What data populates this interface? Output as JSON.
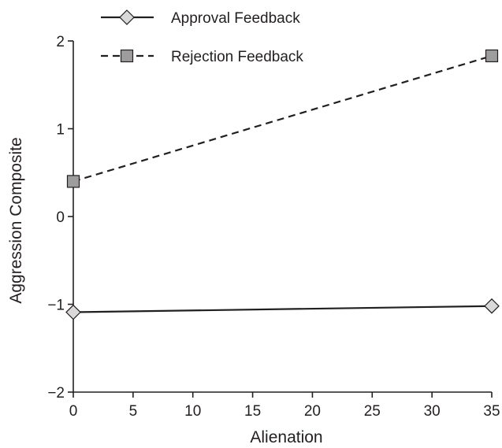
{
  "chart_data": {
    "type": "line",
    "title": "",
    "xlabel": "Alienation",
    "ylabel": "Aggression Composite",
    "x_ticks": [
      "0",
      "5",
      "10",
      "15",
      "20",
      "25",
      "30",
      "35"
    ],
    "y_ticks": [
      "2",
      "1",
      "0",
      "−1",
      "−2"
    ],
    "xlim": [
      0,
      35
    ],
    "ylim": [
      -2,
      2
    ],
    "grid": false,
    "legend_position": "top-left",
    "series": [
      {
        "name": "Approval Feedback",
        "marker": "diamond",
        "line_style": "solid",
        "marker_fill": "#d9d9d9",
        "x": [
          0,
          35
        ],
        "y": [
          -1.09,
          -1.02
        ]
      },
      {
        "name": "Rejection Feedback",
        "marker": "square",
        "line_style": "dashed",
        "marker_fill": "#9d9d9d",
        "x": [
          0,
          35
        ],
        "y": [
          0.4,
          1.83
        ]
      }
    ]
  }
}
